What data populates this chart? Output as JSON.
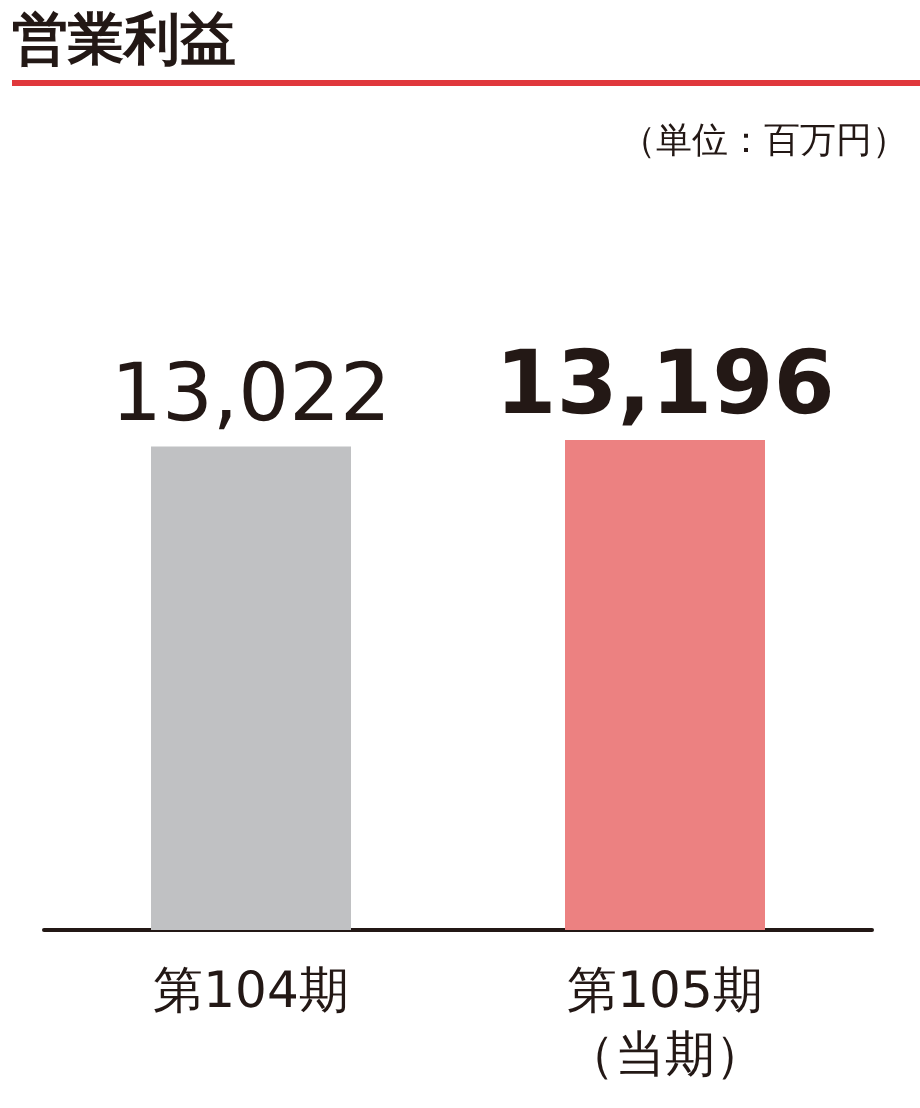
{
  "chart_data": {
    "type": "bar",
    "title": "営業利益",
    "annotations": [
      "（単位：百万円）"
    ],
    "categories": [
      "第104期",
      "第105期（当期）"
    ],
    "values": [
      13022,
      13196
    ],
    "value_labels": [
      "13,022",
      "13,196"
    ],
    "colors": [
      "#c0c1c3",
      "#ec8181"
    ]
  }
}
